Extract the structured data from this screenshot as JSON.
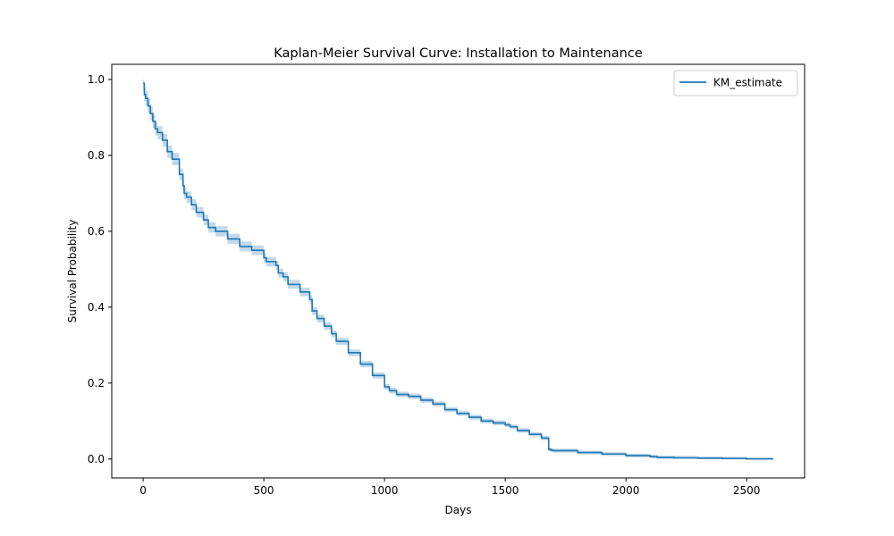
{
  "chart_data": {
    "type": "line",
    "title": "Kaplan-Meier Survival Curve: Installation to Maintenance",
    "xlabel": "Days",
    "ylabel": "Survival Probability",
    "xlim": [
      -130,
      2740
    ],
    "ylim": [
      -0.05,
      1.04
    ],
    "xticks": [
      0,
      500,
      1000,
      1500,
      2000,
      2500
    ],
    "yticks": [
      0.0,
      0.2,
      0.4,
      0.6,
      0.8,
      1.0
    ],
    "xtick_labels": [
      "0",
      "500",
      "1000",
      "1500",
      "2000",
      "2500"
    ],
    "ytick_labels": [
      "0.0",
      "0.2",
      "0.4",
      "0.6",
      "0.8",
      "1.0"
    ],
    "grid": false,
    "legend": {
      "position": "top-right",
      "entries": [
        "KM_estimate"
      ]
    },
    "colors": {
      "line": "#1f77b4",
      "ci_band": "#1f77b4"
    },
    "confidence_band_halfwidth": 0.012,
    "series": [
      {
        "name": "KM_estimate",
        "step": true,
        "x": [
          0,
          5,
          10,
          20,
          30,
          40,
          50,
          60,
          80,
          100,
          120,
          150,
          165,
          170,
          180,
          200,
          220,
          250,
          270,
          300,
          350,
          400,
          450,
          500,
          510,
          550,
          560,
          580,
          600,
          650,
          690,
          700,
          720,
          750,
          780,
          800,
          850,
          900,
          950,
          1000,
          1020,
          1050,
          1100,
          1150,
          1200,
          1250,
          1300,
          1350,
          1400,
          1450,
          1500,
          1520,
          1550,
          1600,
          1650,
          1680,
          1690,
          1700,
          1800,
          1900,
          2000,
          2100,
          2130,
          2200,
          2300,
          2400,
          2500,
          2610
        ],
        "y": [
          0.99,
          0.96,
          0.95,
          0.93,
          0.91,
          0.89,
          0.87,
          0.86,
          0.84,
          0.81,
          0.79,
          0.75,
          0.72,
          0.7,
          0.69,
          0.67,
          0.65,
          0.63,
          0.61,
          0.6,
          0.58,
          0.56,
          0.55,
          0.53,
          0.52,
          0.51,
          0.49,
          0.48,
          0.46,
          0.44,
          0.42,
          0.39,
          0.37,
          0.35,
          0.33,
          0.31,
          0.28,
          0.25,
          0.22,
          0.19,
          0.18,
          0.17,
          0.165,
          0.155,
          0.145,
          0.13,
          0.12,
          0.11,
          0.1,
          0.095,
          0.09,
          0.085,
          0.075,
          0.065,
          0.055,
          0.025,
          0.023,
          0.022,
          0.017,
          0.013,
          0.009,
          0.006,
          0.004,
          0.003,
          0.002,
          0.001,
          0.0,
          0.0
        ]
      }
    ]
  }
}
